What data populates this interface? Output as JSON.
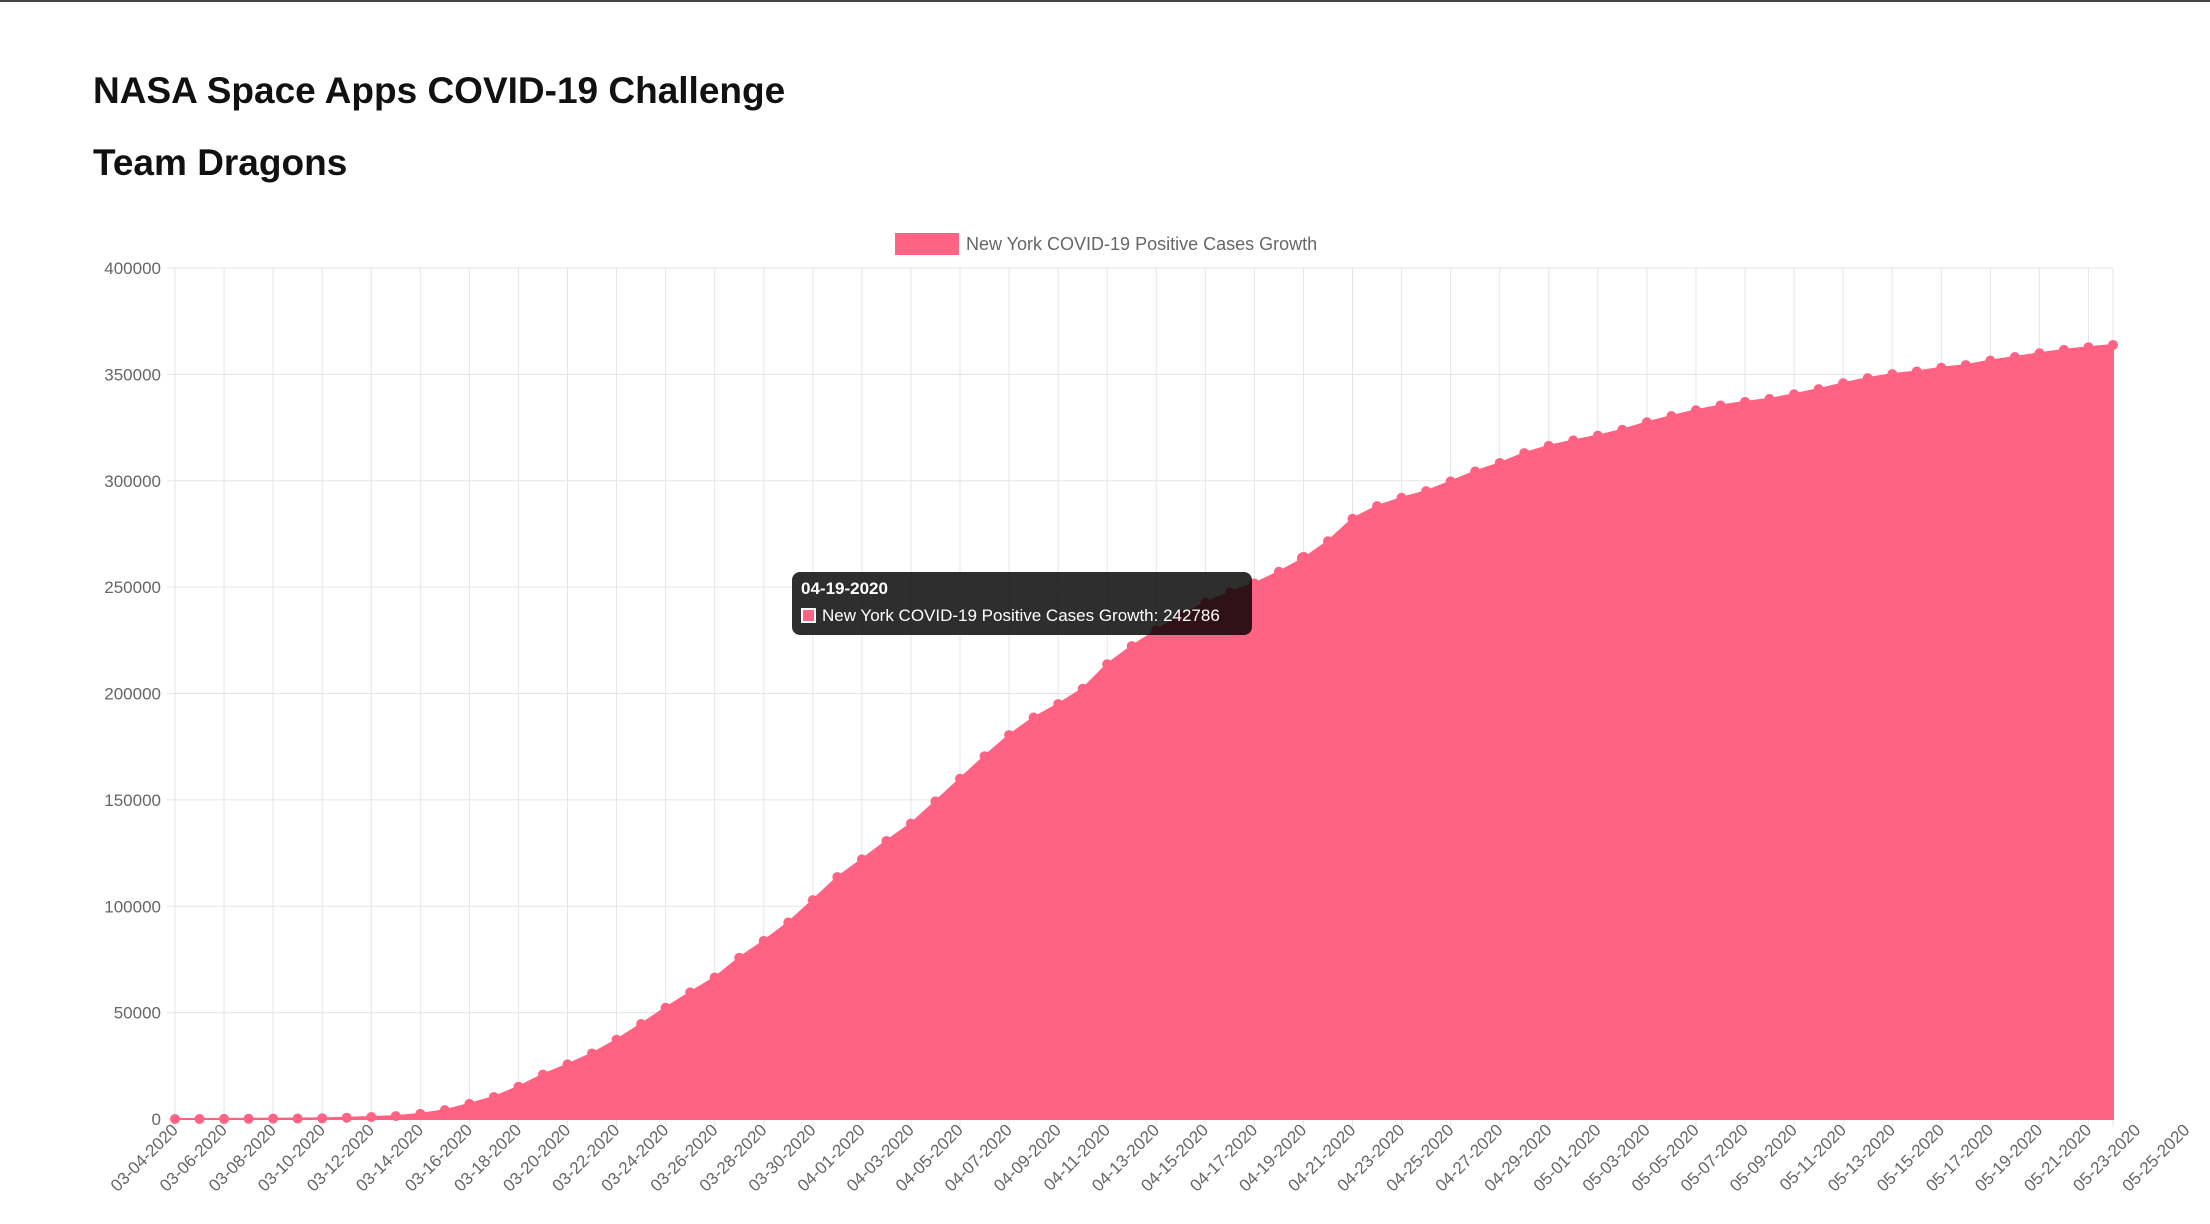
{
  "page": {
    "title": "NASA Space Apps COVID-19 Challenge",
    "subtitle": "Team Dragons"
  },
  "colors": {
    "fill": "#ff6384",
    "point": "#ff6384",
    "grid": "#e5e5e5",
    "tooltip_bg": "#000000"
  },
  "tooltip": {
    "date": "04-19-2020",
    "label": "New York COVID-19 Positive Cases Growth: 242786"
  },
  "chart_data": {
    "type": "area",
    "title": "",
    "xlabel": "",
    "ylabel": "",
    "ylim": [
      0,
      400000
    ],
    "yticks": [
      0,
      50000,
      100000,
      150000,
      200000,
      250000,
      300000,
      350000,
      400000
    ],
    "grid": true,
    "legend_position": "top",
    "x_tick_labels": [
      "03-04-2020",
      "03-06-2020",
      "03-08-2020",
      "03-10-2020",
      "03-12-2020",
      "03-14-2020",
      "03-16-2020",
      "03-18-2020",
      "03-20-2020",
      "03-22-2020",
      "03-24-2020",
      "03-26-2020",
      "03-28-2020",
      "03-30-2020",
      "04-01-2020",
      "04-03-2020",
      "04-05-2020",
      "04-07-2020",
      "04-09-2020",
      "04-11-2020",
      "04-13-2020",
      "04-15-2020",
      "04-17-2020",
      "04-19-2020",
      "04-21-2020",
      "04-23-2020",
      "04-25-2020",
      "04-27-2020",
      "04-29-2020",
      "05-01-2020",
      "05-03-2020",
      "05-05-2020",
      "05-07-2020",
      "05-09-2020",
      "05-11-2020",
      "05-13-2020",
      "05-15-2020",
      "05-17-2020",
      "05-19-2020",
      "05-21-2020",
      "05-23-2020",
      "05-25-2020"
    ],
    "series": [
      {
        "name": "New York COVID-19 Positive Cases Growth",
        "values": [
          11,
          22,
          44,
          105,
          173,
          216,
          328,
          613,
          950,
          1374,
          2382,
          4152,
          7102,
          10356,
          15168,
          20875,
          25665,
          30811,
          37258,
          44635,
          52318,
          59513,
          66497,
          75795,
          83712,
          92381,
          102863,
          113704,
          122031,
          130689,
          138863,
          149316,
          159937,
          170512,
          180458,
          188694,
          195031,
          202208,
          213779,
          222284,
          229642,
          236732,
          242786,
          247512,
          251690,
          257216,
          263460,
          271590,
          282143,
          288045,
          291996,
          295106,
          299691,
          304372,
          308314,
          312977,
          316415,
          318953,
          321192,
          323978,
          327469,
          330407,
          333122,
          335395,
          337055,
          338485,
          340661,
          343051,
          345813,
          348232,
          350121,
          351371,
          353136,
          354370,
          356458,
          358154,
          359926,
          361515,
          362764,
          363836
        ]
      }
    ]
  }
}
